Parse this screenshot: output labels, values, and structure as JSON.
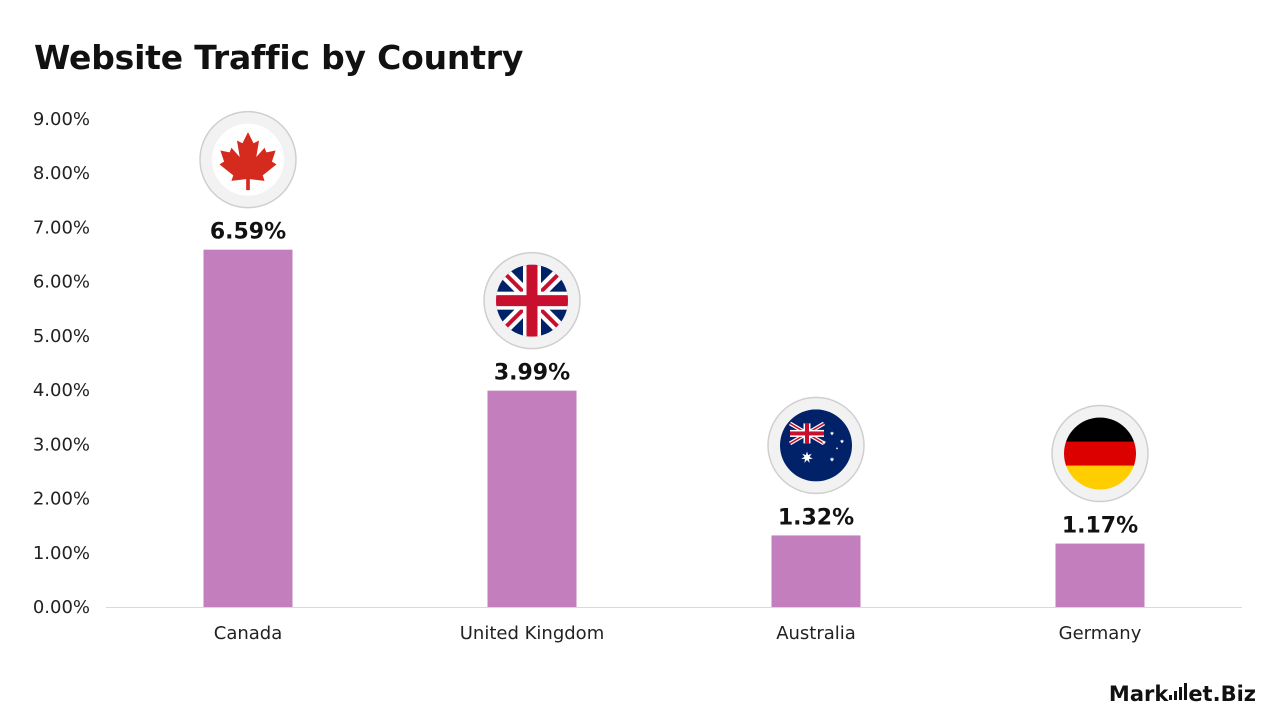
{
  "chart_data": {
    "type": "bar",
    "title": "Website Traffic by Country",
    "categories": [
      "Canada",
      "United Kingdom",
      "Australia",
      "Germany"
    ],
    "values": [
      6.59,
      3.99,
      1.32,
      1.17
    ],
    "value_labels": [
      "6.59%",
      "3.99%",
      "1.32%",
      "1.17%"
    ],
    "flag_icons": [
      "canada-flag-icon",
      "uk-flag-icon",
      "australia-flag-icon",
      "germany-flag-icon"
    ],
    "y_ticks": [
      "0.00%",
      "1.00%",
      "2.00%",
      "3.00%",
      "4.00%",
      "5.00%",
      "6.00%",
      "7.00%",
      "8.00%",
      "9.00%"
    ],
    "ylim": [
      0,
      9
    ],
    "grid": false,
    "bar_color": "#C27EBD",
    "axis_color": "#D9D9D9"
  },
  "brand": {
    "name_a": "Mark",
    "name_b": "et.Biz"
  }
}
